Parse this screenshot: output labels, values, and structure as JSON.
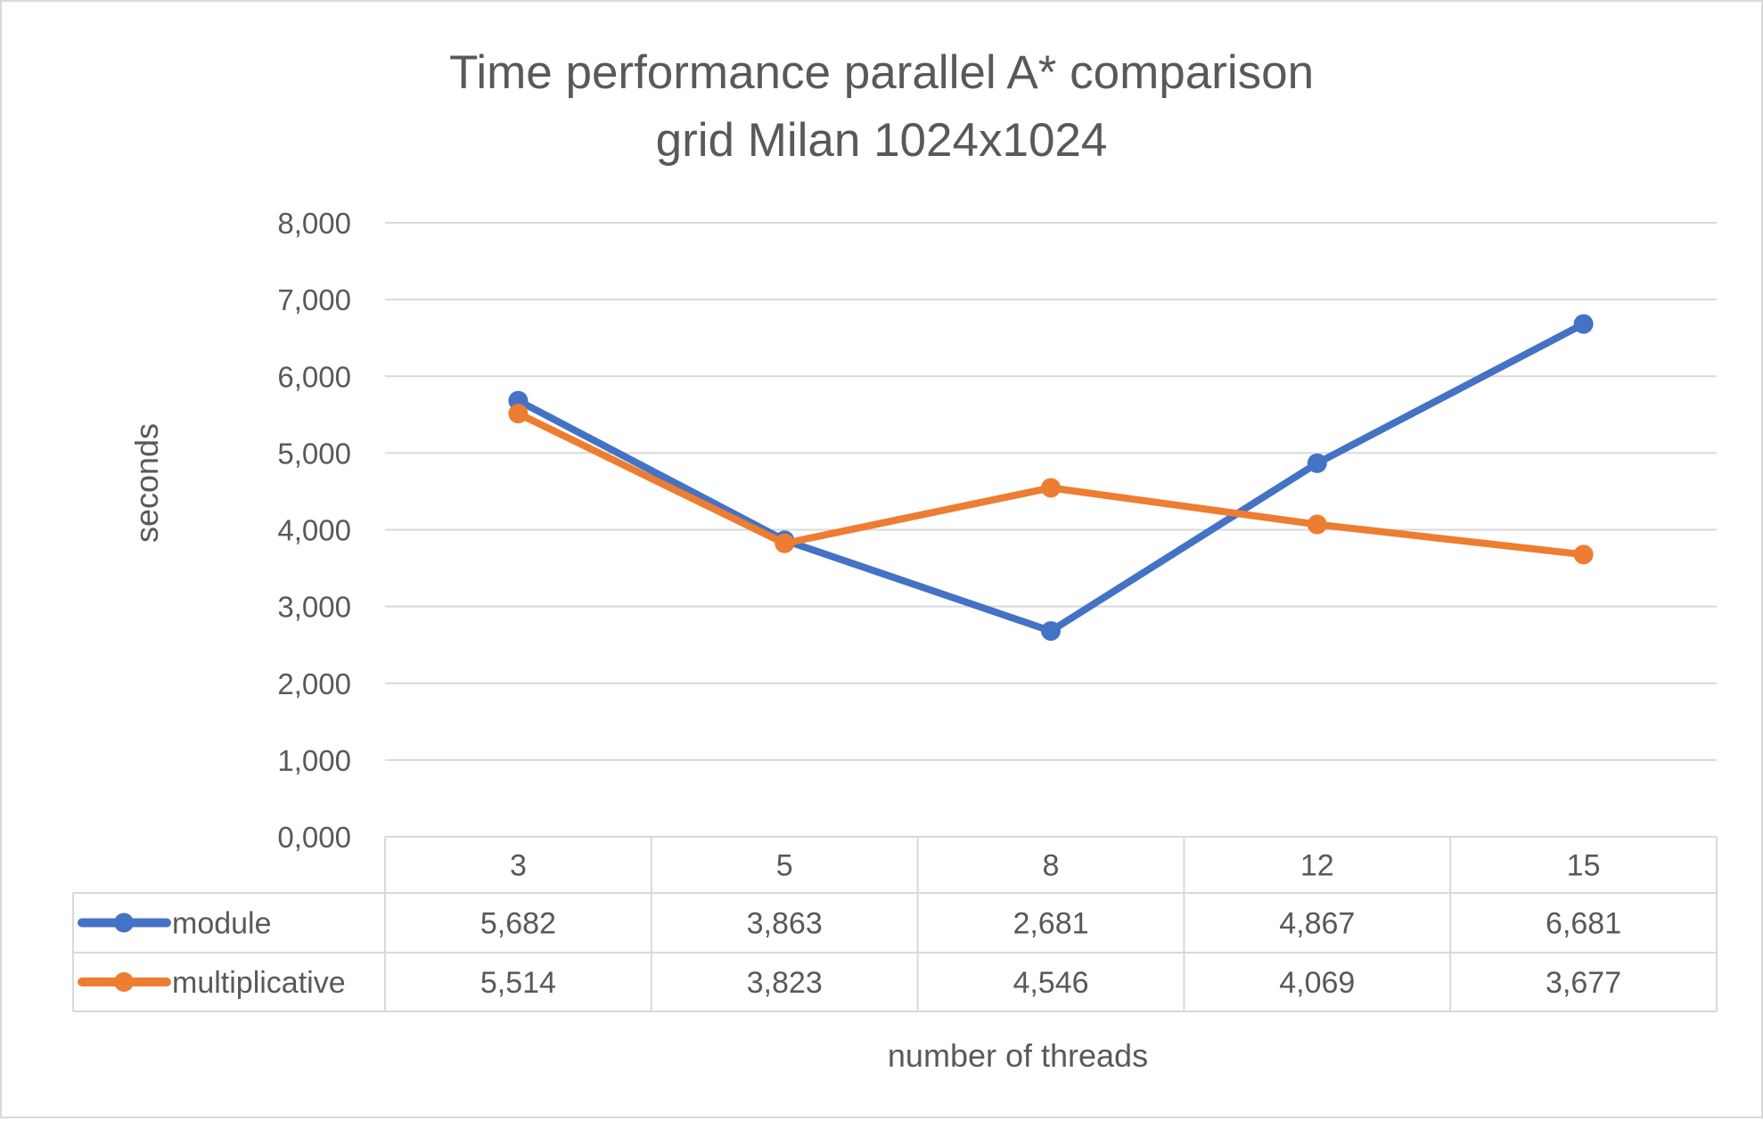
{
  "chart_data": {
    "type": "line",
    "title": [
      "Time performance parallel A* comparison",
      "grid Milan 1024x1024"
    ],
    "xlabel": "number of threads",
    "ylabel": "seconds",
    "categories": [
      "3",
      "5",
      "8",
      "12",
      "15"
    ],
    "ylim": [
      0,
      8000
    ],
    "yticks": [
      "0,000",
      "1,000",
      "2,000",
      "3,000",
      "4,000",
      "5,000",
      "6,000",
      "7,000",
      "8,000"
    ],
    "grid": true,
    "data_table": true,
    "series": [
      {
        "name": "module",
        "color": "#4472c4",
        "values": [
          5682,
          3863,
          2681,
          4867,
          6681
        ],
        "labels": [
          "5,682",
          "3,863",
          "2,681",
          "4,867",
          "6,681"
        ]
      },
      {
        "name": "multiplicative",
        "color": "#ed7d31",
        "values": [
          5514,
          3823,
          4546,
          4069,
          3677
        ],
        "labels": [
          "5,514",
          "3,823",
          "4,546",
          "4,069",
          "3,677"
        ]
      }
    ]
  }
}
